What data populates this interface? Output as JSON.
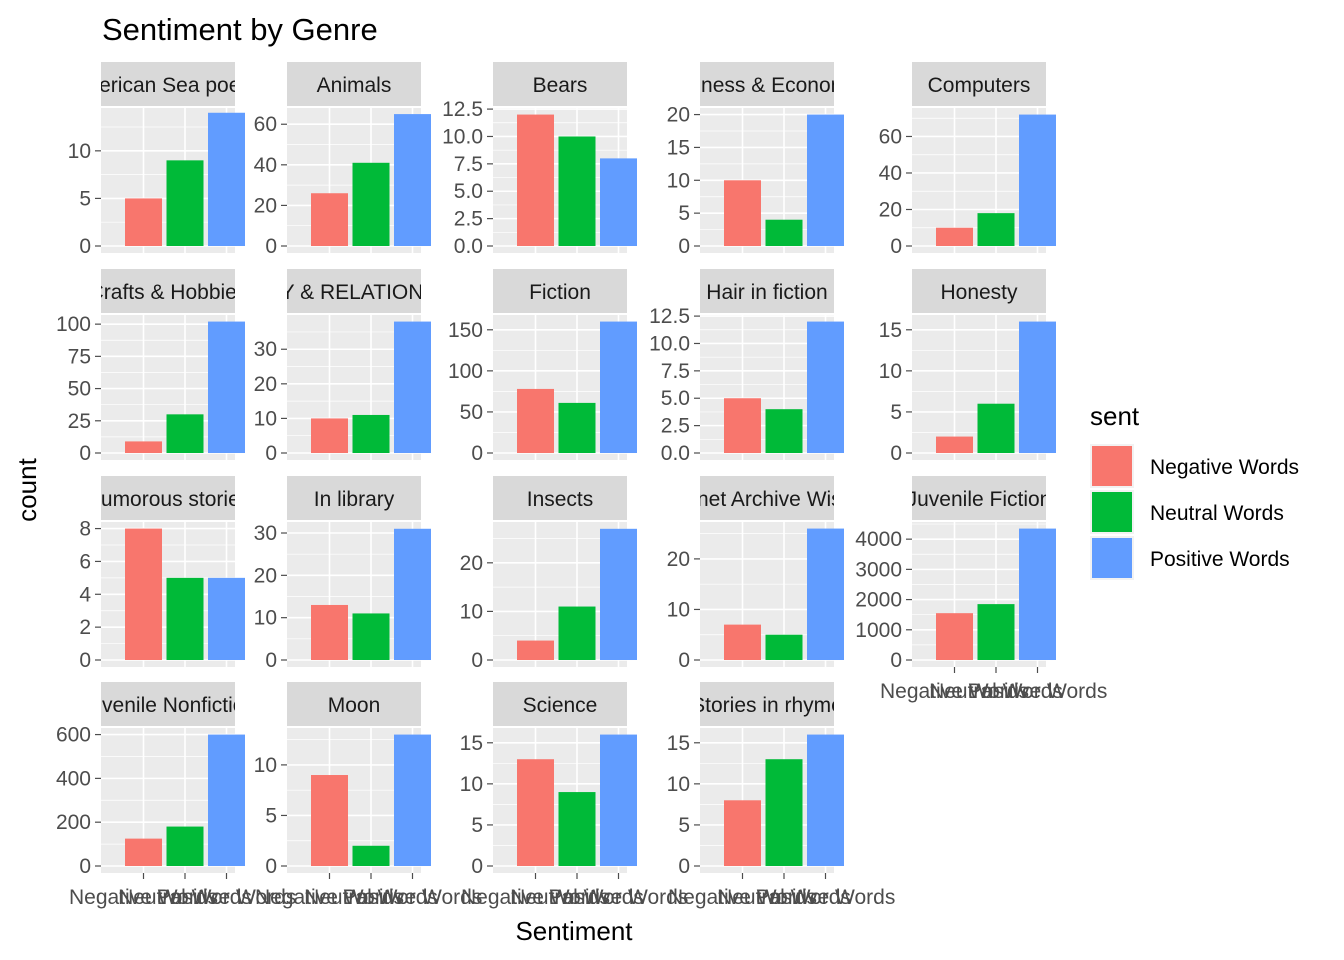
{
  "chart_data": {
    "type": "bar",
    "title": "Sentiment by Genre",
    "xlabel": "Sentiment",
    "ylabel": "count",
    "categories": [
      "Negative Words",
      "Neutral Words",
      "Positive Words"
    ],
    "colors": [
      "#F8766D",
      "#00BA38",
      "#619CFF"
    ],
    "legend": {
      "title": "sent",
      "position": "right",
      "entries": [
        "Negative Words",
        "Neutral Words",
        "Positive Words"
      ]
    },
    "grid": true,
    "facets": [
      {
        "label": "American Sea poems",
        "values": [
          5,
          9,
          14
        ],
        "ylim": [
          0,
          14.5
        ],
        "yticks": [
          0,
          5,
          10
        ],
        "ytick_labels": [
          "0",
          "5",
          "10"
        ]
      },
      {
        "label": "Animals",
        "values": [
          26,
          41,
          65
        ],
        "ylim": [
          0,
          68
        ],
        "yticks": [
          0,
          20,
          40,
          60
        ],
        "ytick_labels": [
          "0",
          "20",
          "40",
          "60"
        ]
      },
      {
        "label": "Bears",
        "values": [
          12,
          10,
          8
        ],
        "ylim": [
          0,
          12.6
        ],
        "yticks": [
          0,
          2.5,
          5,
          7.5,
          10,
          12.5
        ],
        "ytick_labels": [
          "0.0",
          "2.5",
          "5.0",
          "7.5",
          "10.0",
          "12.5"
        ]
      },
      {
        "label": "Business & Economics",
        "values": [
          10,
          4,
          20
        ],
        "ylim": [
          0,
          21
        ],
        "yticks": [
          0,
          5,
          10,
          15,
          20
        ],
        "ytick_labels": [
          "0",
          "5",
          "10",
          "15",
          "20"
        ]
      },
      {
        "label": "Computers",
        "values": [
          10,
          18,
          72
        ],
        "ylim": [
          0,
          75.6
        ],
        "yticks": [
          0,
          20,
          40,
          60
        ],
        "ytick_labels": [
          "0",
          "20",
          "40",
          "60"
        ]
      },
      {
        "label": "Crafts & Hobbies",
        "values": [
          9,
          30,
          102
        ],
        "ylim": [
          0,
          107.1
        ],
        "yticks": [
          0,
          25,
          50,
          75,
          100
        ],
        "ytick_labels": [
          "0",
          "25",
          "50",
          "75",
          "100"
        ]
      },
      {
        "label": "FAMILY & RELATIONSHIPS",
        "values": [
          10,
          11,
          38
        ],
        "ylim": [
          0,
          39.9
        ],
        "yticks": [
          0,
          10,
          20,
          30
        ],
        "ytick_labels": [
          "0",
          "10",
          "20",
          "30"
        ]
      },
      {
        "label": "Fiction",
        "values": [
          78,
          61,
          160
        ],
        "ylim": [
          0,
          168
        ],
        "yticks": [
          0,
          50,
          100,
          150
        ],
        "ytick_labels": [
          "0",
          "50",
          "100",
          "150"
        ]
      },
      {
        "label": "Hair in fiction",
        "values": [
          5,
          4,
          12
        ],
        "ylim": [
          0,
          12.6
        ],
        "yticks": [
          0,
          2.5,
          5,
          7.5,
          10,
          12.5
        ],
        "ytick_labels": [
          "0.0",
          "2.5",
          "5.0",
          "7.5",
          "10.0",
          "12.5"
        ]
      },
      {
        "label": "Honesty",
        "values": [
          2,
          6,
          16
        ],
        "ylim": [
          0,
          16.8
        ],
        "yticks": [
          0,
          5,
          10,
          15
        ],
        "ytick_labels": [
          "0",
          "5",
          "10",
          "15"
        ]
      },
      {
        "label": "Humorous stories",
        "values": [
          8,
          5,
          5
        ],
        "ylim": [
          0,
          8.4
        ],
        "yticks": [
          0,
          2,
          4,
          6,
          8
        ],
        "ytick_labels": [
          "0",
          "2",
          "4",
          "6",
          "8"
        ]
      },
      {
        "label": "In library",
        "values": [
          13,
          11,
          31
        ],
        "ylim": [
          0,
          32.6
        ],
        "yticks": [
          0,
          10,
          20,
          30
        ],
        "ytick_labels": [
          "0",
          "10",
          "20",
          "30"
        ]
      },
      {
        "label": "Insects",
        "values": [
          4,
          11,
          27
        ],
        "ylim": [
          0,
          28.4
        ],
        "yticks": [
          0,
          10,
          20
        ],
        "ytick_labels": [
          "0",
          "10",
          "20"
        ]
      },
      {
        "label": "Internet Archive Wishlist",
        "values": [
          7,
          5,
          26
        ],
        "ylim": [
          0,
          27.3
        ],
        "yticks": [
          0,
          10,
          20
        ],
        "ytick_labels": [
          "0",
          "10",
          "20"
        ]
      },
      {
        "label": "Juvenile Fiction",
        "values": [
          1550,
          1850,
          4350
        ],
        "ylim": [
          0,
          4568
        ],
        "yticks": [
          0,
          1000,
          2000,
          3000,
          4000
        ],
        "ytick_labels": [
          "0",
          "1000",
          "2000",
          "3000",
          "4000"
        ]
      },
      {
        "label": "Juvenile Nonfiction",
        "values": [
          125,
          180,
          600
        ],
        "ylim": [
          0,
          630
        ],
        "yticks": [
          0,
          200,
          400,
          600
        ],
        "ytick_labels": [
          "0",
          "200",
          "400",
          "600"
        ]
      },
      {
        "label": "Moon",
        "values": [
          9,
          2,
          13
        ],
        "ylim": [
          0,
          13.65
        ],
        "yticks": [
          0,
          5,
          10
        ],
        "ytick_labels": [
          "0",
          "5",
          "10"
        ]
      },
      {
        "label": "Science",
        "values": [
          13,
          9,
          16
        ],
        "ylim": [
          0,
          16.8
        ],
        "yticks": [
          0,
          5,
          10,
          15
        ],
        "ytick_labels": [
          "0",
          "5",
          "10",
          "15"
        ]
      },
      {
        "label": "Stories in rhyme",
        "values": [
          8,
          13,
          16
        ],
        "ylim": [
          0,
          16.8
        ],
        "yticks": [
          0,
          5,
          10,
          15
        ],
        "ytick_labels": [
          "0",
          "5",
          "10",
          "15"
        ]
      }
    ]
  }
}
